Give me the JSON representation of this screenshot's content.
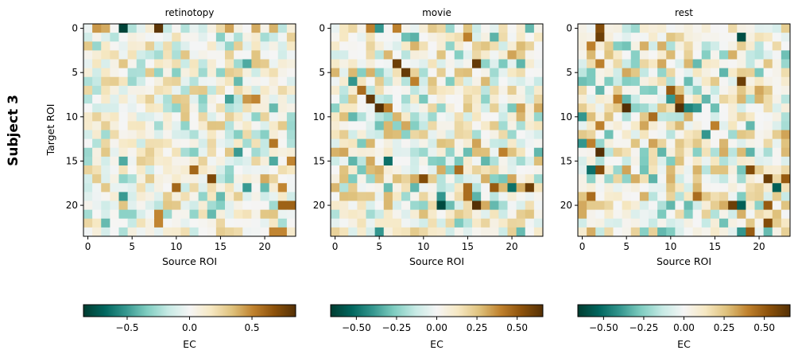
{
  "figure": {
    "row_label": "Subject 3",
    "ylabel": "Target ROI"
  },
  "chart_data": [
    {
      "type": "heatmap",
      "title": "retinotopy",
      "xlabel": "Source ROI",
      "ylabel": "Target ROI",
      "n_rows": 24,
      "n_cols": 24,
      "x_ticks": [
        0,
        5,
        10,
        15,
        20
      ],
      "y_ticks": [
        0,
        5,
        10,
        15,
        20
      ],
      "colormap": "BrBG_r",
      "colorbar": {
        "label": "EC",
        "range": [
          -0.85,
          0.85
        ],
        "ticks": [
          -0.5,
          0.0,
          0.5
        ],
        "tick_labels": [
          "−0.5",
          "0.0",
          "0.5"
        ]
      },
      "seed": 11,
      "strong_cells": [
        [
          0,
          4,
          -0.82
        ],
        [
          0,
          8,
          0.82
        ],
        [
          0,
          1,
          0.45
        ],
        [
          0,
          2,
          0.4
        ],
        [
          0,
          16,
          0.42
        ],
        [
          0,
          19,
          0.4
        ],
        [
          0,
          21,
          0.38
        ],
        [
          4,
          18,
          -0.45
        ],
        [
          6,
          17,
          -0.4
        ],
        [
          8,
          16,
          -0.48
        ],
        [
          8,
          18,
          0.45
        ],
        [
          8,
          19,
          0.5
        ],
        [
          9,
          21,
          -0.4
        ],
        [
          13,
          21,
          0.55
        ],
        [
          14,
          17,
          -0.5
        ],
        [
          15,
          4,
          -0.45
        ],
        [
          15,
          21,
          -0.45
        ],
        [
          15,
          23,
          0.5
        ],
        [
          16,
          12,
          0.6
        ],
        [
          17,
          14,
          0.72
        ],
        [
          17,
          20,
          0.4
        ],
        [
          18,
          10,
          0.6
        ],
        [
          18,
          18,
          -0.5
        ],
        [
          18,
          20,
          -0.4
        ],
        [
          18,
          22,
          0.5
        ],
        [
          19,
          4,
          -0.5
        ],
        [
          19,
          15,
          -0.4
        ],
        [
          20,
          22,
          0.62
        ],
        [
          20,
          23,
          0.62
        ],
        [
          21,
          8,
          0.5
        ],
        [
          21,
          14,
          -0.4
        ],
        [
          22,
          2,
          -0.4
        ],
        [
          22,
          8,
          0.5
        ],
        [
          23,
          21,
          0.5
        ],
        [
          23,
          22,
          0.5
        ]
      ]
    },
    {
      "type": "heatmap",
      "title": "movie",
      "xlabel": "Source ROI",
      "ylabel": "",
      "n_rows": 24,
      "n_cols": 24,
      "x_ticks": [
        0,
        5,
        10,
        15,
        20
      ],
      "y_ticks": [
        0,
        5,
        10,
        15,
        20
      ],
      "colormap": "BrBG_r",
      "colorbar": {
        "label": "EC",
        "range": [
          -0.66,
          0.66
        ],
        "ticks": [
          -0.5,
          -0.25,
          0.0,
          0.25,
          0.5
        ],
        "tick_labels": [
          "−0.50",
          "−0.25",
          "0.00",
          "0.25",
          "0.50"
        ]
      },
      "seed": 23,
      "strong_cells": [
        [
          0,
          4,
          0.4
        ],
        [
          0,
          5,
          -0.4
        ],
        [
          0,
          7,
          0.4
        ],
        [
          1,
          15,
          0.4
        ],
        [
          4,
          7,
          0.6
        ],
        [
          4,
          16,
          0.62
        ],
        [
          5,
          8,
          0.62
        ],
        [
          6,
          2,
          -0.4
        ],
        [
          6,
          9,
          0.4
        ],
        [
          7,
          3,
          0.45
        ],
        [
          8,
          4,
          0.62
        ],
        [
          9,
          5,
          0.66
        ],
        [
          9,
          6,
          0.4
        ],
        [
          14,
          19,
          0.4
        ],
        [
          15,
          6,
          -0.5
        ],
        [
          16,
          14,
          0.45
        ],
        [
          17,
          10,
          0.55
        ],
        [
          18,
          15,
          0.45
        ],
        [
          18,
          18,
          0.5
        ],
        [
          18,
          20,
          -0.5
        ],
        [
          18,
          22,
          0.6
        ],
        [
          19,
          12,
          -0.4
        ],
        [
          19,
          15,
          0.45
        ],
        [
          20,
          12,
          -0.62
        ],
        [
          20,
          16,
          0.66
        ],
        [
          23,
          5,
          -0.4
        ]
      ]
    },
    {
      "type": "heatmap",
      "title": "rest",
      "xlabel": "Source ROI",
      "ylabel": "",
      "n_rows": 24,
      "n_cols": 24,
      "x_ticks": [
        0,
        5,
        10,
        15,
        20
      ],
      "y_ticks": [
        0,
        5,
        10,
        15,
        20
      ],
      "colormap": "BrBG_r",
      "colorbar": {
        "label": "EC",
        "range": [
          -0.66,
          0.66
        ],
        "ticks": [
          -0.5,
          -0.25,
          0.0,
          0.25,
          0.5
        ],
        "tick_labels": [
          "−0.50",
          "−0.25",
          "0.00",
          "0.25",
          "0.50"
        ]
      },
      "seed": 37,
      "strong_cells": [
        [
          0,
          2,
          0.55
        ],
        [
          1,
          2,
          0.6
        ],
        [
          1,
          18,
          -0.6
        ],
        [
          2,
          1,
          0.4
        ],
        [
          4,
          2,
          0.4
        ],
        [
          6,
          18,
          0.6
        ],
        [
          7,
          10,
          0.5
        ],
        [
          8,
          4,
          0.4
        ],
        [
          8,
          11,
          0.45
        ],
        [
          8,
          10,
          -0.4
        ],
        [
          9,
          5,
          0.66
        ],
        [
          9,
          11,
          0.66
        ],
        [
          9,
          12,
          -0.45
        ],
        [
          9,
          13,
          -0.4
        ],
        [
          10,
          0,
          -0.4
        ],
        [
          10,
          8,
          0.45
        ],
        [
          11,
          2,
          0.4
        ],
        [
          11,
          15,
          0.4
        ],
        [
          12,
          14,
          -0.4
        ],
        [
          13,
          0,
          -0.4
        ],
        [
          13,
          1,
          0.4
        ],
        [
          14,
          2,
          0.66
        ],
        [
          16,
          1,
          -0.5
        ],
        [
          16,
          2,
          0.55
        ],
        [
          16,
          19,
          0.55
        ],
        [
          17,
          21,
          0.6
        ],
        [
          17,
          23,
          0.5
        ],
        [
          18,
          22,
          -0.55
        ],
        [
          19,
          1,
          0.45
        ],
        [
          19,
          13,
          0.45
        ],
        [
          20,
          17,
          0.6
        ],
        [
          20,
          18,
          -0.55
        ],
        [
          20,
          21,
          0.5
        ],
        [
          22,
          21,
          0.55
        ],
        [
          23,
          18,
          -0.4
        ],
        [
          23,
          19,
          0.5
        ]
      ]
    }
  ]
}
